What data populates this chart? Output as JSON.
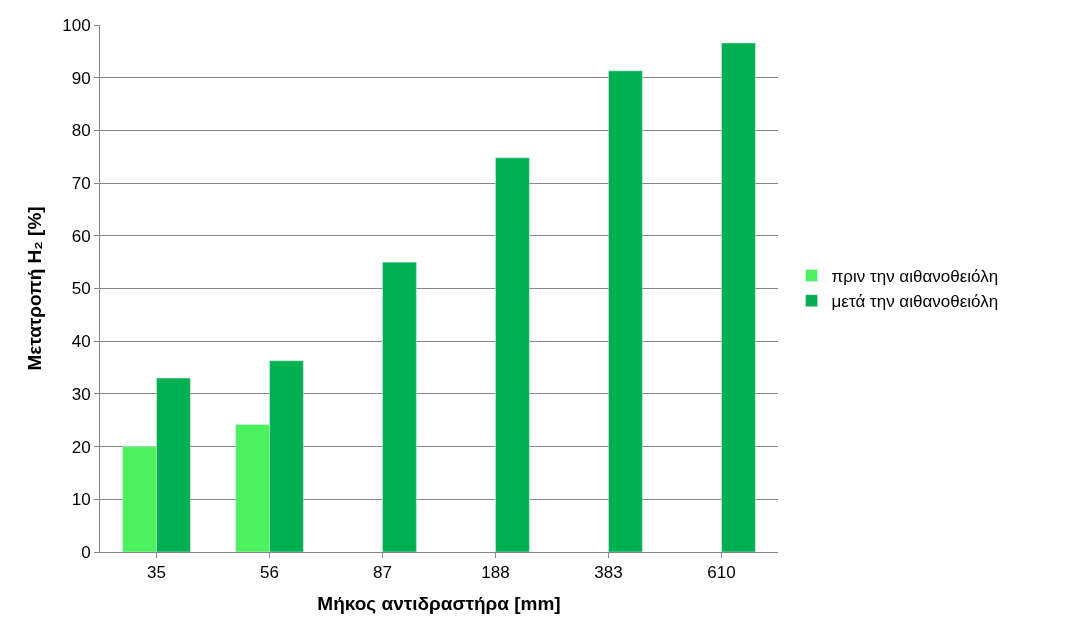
{
  "chart_data": {
    "type": "bar",
    "xlabel": "Μήκος αντιδραστήρα [mm]",
    "ylabel": "Μετατροπή H₂ [%]",
    "categories": [
      "35",
      "56",
      "87",
      "188",
      "383",
      "610"
    ],
    "series": [
      {
        "name": "πριν την αιθανοθειόλη",
        "color": "#4cf25e",
        "values": [
          20.0,
          24.2,
          null,
          null,
          null,
          null
        ]
      },
      {
        "name": "μετά την αιθανοθειόλη",
        "color": "#00b050",
        "values": [
          33.0,
          36.3,
          55.0,
          74.8,
          91.3,
          96.6
        ]
      }
    ],
    "ylim": [
      0,
      100
    ],
    "yticks": [
      0,
      10,
      20,
      30,
      40,
      50,
      60,
      70,
      80,
      90,
      100
    ],
    "grid": "y",
    "legend": "right"
  }
}
